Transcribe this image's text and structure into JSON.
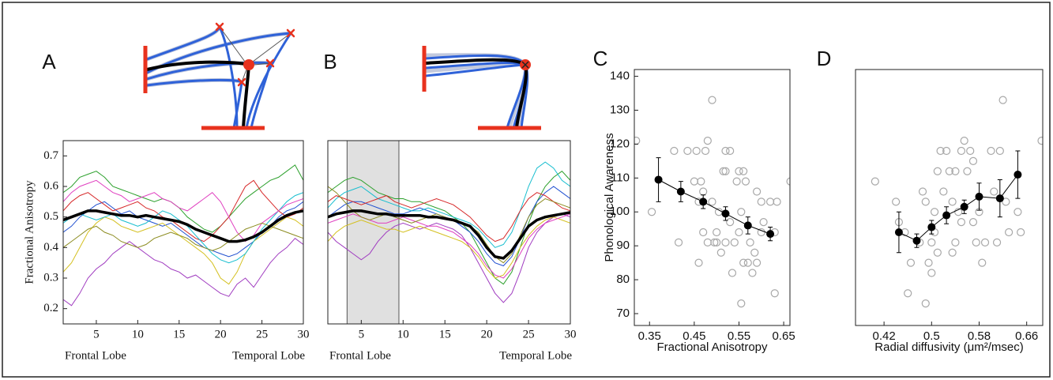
{
  "chart_data": [
    {
      "type": "line",
      "panel_label": "A",
      "ylabel": "Fractional Anisotropy",
      "x_annotations": [
        "Frontal Lobe",
        "Temporal Lobe"
      ],
      "x": [
        1,
        2,
        3,
        4,
        5,
        6,
        7,
        8,
        9,
        10,
        11,
        12,
        13,
        14,
        15,
        16,
        17,
        18,
        19,
        20,
        21,
        22,
        23,
        24,
        25,
        26,
        27,
        28,
        29,
        30
      ],
      "xlim": [
        1,
        30
      ],
      "xticks": [
        5,
        10,
        15,
        20,
        25,
        30
      ],
      "ylim": [
        0.15,
        0.75
      ],
      "yticks": [
        0.2,
        0.3,
        0.4,
        0.5,
        0.6,
        0.7
      ],
      "series": [
        {
          "color": "#a03cc0",
          "values": [
            0.23,
            0.21,
            0.25,
            0.3,
            0.33,
            0.35,
            0.38,
            0.4,
            0.42,
            0.4,
            0.38,
            0.36,
            0.35,
            0.33,
            0.32,
            0.3,
            0.31,
            0.29,
            0.27,
            0.25,
            0.24,
            0.28,
            0.3,
            0.27,
            0.31,
            0.35,
            0.38,
            0.4,
            0.43,
            0.41
          ]
        },
        {
          "color": "#2ca02c",
          "values": [
            0.58,
            0.6,
            0.63,
            0.64,
            0.65,
            0.63,
            0.6,
            0.59,
            0.58,
            0.57,
            0.56,
            0.55,
            0.56,
            0.55,
            0.53,
            0.5,
            0.48,
            0.46,
            0.45,
            0.47,
            0.5,
            0.53,
            0.56,
            0.58,
            0.6,
            0.62,
            0.63,
            0.65,
            0.67,
            0.62
          ]
        },
        {
          "color": "#1f4fd0",
          "values": [
            0.45,
            0.47,
            0.5,
            0.52,
            0.54,
            0.55,
            0.53,
            0.51,
            0.52,
            0.5,
            0.49,
            0.48,
            0.47,
            0.48,
            0.46,
            0.44,
            0.42,
            0.4,
            0.39,
            0.38,
            0.37,
            0.38,
            0.4,
            0.42,
            0.45,
            0.47,
            0.5,
            0.52,
            0.53,
            0.55
          ]
        },
        {
          "color": "#d4c020",
          "values": [
            0.32,
            0.35,
            0.4,
            0.45,
            0.48,
            0.5,
            0.49,
            0.47,
            0.46,
            0.45,
            0.46,
            0.47,
            0.48,
            0.46,
            0.44,
            0.42,
            0.4,
            0.38,
            0.35,
            0.3,
            0.28,
            0.32,
            0.38,
            0.42,
            0.44,
            0.46,
            0.48,
            0.5,
            0.49,
            0.47
          ]
        },
        {
          "color": "#d62728",
          "values": [
            0.52,
            0.55,
            0.57,
            0.58,
            0.56,
            0.54,
            0.52,
            0.53,
            0.54,
            0.55,
            0.53,
            0.52,
            0.5,
            0.49,
            0.47,
            0.45,
            0.43,
            0.42,
            0.44,
            0.47,
            0.5,
            0.55,
            0.6,
            0.62,
            0.58,
            0.55,
            0.52,
            0.5,
            0.51,
            0.53
          ]
        },
        {
          "color": "#17becf",
          "values": [
            0.48,
            0.5,
            0.51,
            0.5,
            0.49,
            0.5,
            0.51,
            0.49,
            0.48,
            0.47,
            0.48,
            0.5,
            0.52,
            0.51,
            0.49,
            0.47,
            0.44,
            0.41,
            0.38,
            0.36,
            0.35,
            0.36,
            0.38,
            0.42,
            0.46,
            0.49,
            0.52,
            0.55,
            0.57,
            0.58
          ]
        },
        {
          "color": "#e040c0",
          "values": [
            0.55,
            0.58,
            0.6,
            0.61,
            0.62,
            0.6,
            0.58,
            0.57,
            0.55,
            0.56,
            0.57,
            0.58,
            0.56,
            0.55,
            0.53,
            0.52,
            0.54,
            0.56,
            0.58,
            0.55,
            0.5,
            0.45,
            0.42,
            0.44,
            0.48,
            0.5,
            0.52,
            0.54,
            0.55,
            0.56
          ]
        },
        {
          "color": "#8c8c20",
          "values": [
            0.4,
            0.42,
            0.44,
            0.46,
            0.47,
            0.45,
            0.44,
            0.42,
            0.41,
            0.4,
            0.41,
            0.43,
            0.44,
            0.45,
            0.44,
            0.43,
            0.41,
            0.4,
            0.39,
            0.4,
            0.42,
            0.44,
            0.46,
            0.47,
            0.48,
            0.47,
            0.46,
            0.45,
            0.44,
            0.43
          ]
        },
        {
          "color": "#000000",
          "values": [
            0.49,
            0.5,
            0.51,
            0.52,
            0.52,
            0.515,
            0.51,
            0.505,
            0.505,
            0.5,
            0.505,
            0.5,
            0.495,
            0.49,
            0.485,
            0.475,
            0.46,
            0.45,
            0.44,
            0.43,
            0.42,
            0.42,
            0.425,
            0.435,
            0.45,
            0.47,
            0.49,
            0.505,
            0.515,
            0.52
          ]
        }
      ]
    },
    {
      "type": "line",
      "panel_label": "B",
      "x_annotations": [
        "Frontal Lobe",
        "Temporal Lobe"
      ],
      "highlight": [
        3.3,
        9.5
      ],
      "x": [
        1,
        2,
        3,
        4,
        5,
        6,
        7,
        8,
        9,
        10,
        11,
        12,
        13,
        14,
        15,
        16,
        17,
        18,
        19,
        20,
        21,
        22,
        23,
        24,
        25,
        26,
        27,
        28,
        29,
        30
      ],
      "xlim": [
        1,
        30
      ],
      "xticks": [
        5,
        10,
        15,
        20,
        25,
        30
      ],
      "ylim": [
        0.15,
        0.75
      ],
      "series": [
        {
          "color": "#2ca02c",
          "values": [
            0.58,
            0.6,
            0.62,
            0.63,
            0.62,
            0.6,
            0.58,
            0.57,
            0.56,
            0.56,
            0.55,
            0.55,
            0.54,
            0.53,
            0.52,
            0.5,
            0.48,
            0.45,
            0.4,
            0.35,
            0.3,
            0.28,
            0.32,
            0.4,
            0.48,
            0.55,
            0.6,
            0.63,
            0.65,
            0.62
          ]
        },
        {
          "color": "#a03cc0",
          "values": [
            0.45,
            0.42,
            0.4,
            0.38,
            0.36,
            0.38,
            0.42,
            0.45,
            0.47,
            0.48,
            0.47,
            0.46,
            0.47,
            0.48,
            0.47,
            0.46,
            0.44,
            0.4,
            0.35,
            0.3,
            0.25,
            0.22,
            0.25,
            0.32,
            0.4,
            0.45,
            0.48,
            0.5,
            0.51,
            0.5
          ]
        },
        {
          "color": "#1f4fd0",
          "values": [
            0.5,
            0.52,
            0.54,
            0.55,
            0.55,
            0.54,
            0.53,
            0.52,
            0.51,
            0.51,
            0.52,
            0.53,
            0.52,
            0.51,
            0.5,
            0.49,
            0.47,
            0.45,
            0.42,
            0.38,
            0.35,
            0.34,
            0.37,
            0.43,
            0.5,
            0.55,
            0.58,
            0.6,
            0.58,
            0.56
          ]
        },
        {
          "color": "#17becf",
          "values": [
            0.53,
            0.56,
            0.58,
            0.59,
            0.6,
            0.58,
            0.56,
            0.55,
            0.54,
            0.53,
            0.52,
            0.52,
            0.53,
            0.52,
            0.51,
            0.5,
            0.49,
            0.48,
            0.46,
            0.43,
            0.4,
            0.41,
            0.45,
            0.52,
            0.6,
            0.66,
            0.68,
            0.66,
            0.62,
            0.6
          ]
        },
        {
          "color": "#d4c020",
          "values": [
            0.42,
            0.45,
            0.47,
            0.48,
            0.49,
            0.48,
            0.47,
            0.46,
            0.46,
            0.45,
            0.46,
            0.47,
            0.46,
            0.45,
            0.44,
            0.43,
            0.42,
            0.4,
            0.37,
            0.33,
            0.3,
            0.31,
            0.35,
            0.4,
            0.44,
            0.47,
            0.49,
            0.5,
            0.49,
            0.48
          ]
        },
        {
          "color": "#d62728",
          "values": [
            0.55,
            0.57,
            0.56,
            0.55,
            0.54,
            0.55,
            0.56,
            0.57,
            0.55,
            0.54,
            0.53,
            0.54,
            0.55,
            0.56,
            0.55,
            0.54,
            0.52,
            0.5,
            0.47,
            0.44,
            0.42,
            0.43,
            0.47,
            0.52,
            0.56,
            0.58,
            0.57,
            0.55,
            0.53,
            0.52
          ]
        },
        {
          "color": "#e040c0",
          "values": [
            0.48,
            0.49,
            0.5,
            0.51,
            0.5,
            0.49,
            0.48,
            0.48,
            0.49,
            0.5,
            0.49,
            0.48,
            0.47,
            0.47,
            0.46,
            0.45,
            0.43,
            0.41,
            0.38,
            0.34,
            0.31,
            0.3,
            0.33,
            0.38,
            0.43,
            0.46,
            0.48,
            0.49,
            0.5,
            0.51
          ]
        },
        {
          "color": "#8c8c20",
          "values": [
            0.6,
            0.58,
            0.55,
            0.52,
            0.5,
            0.49,
            0.5,
            0.51,
            0.5,
            0.49,
            0.48,
            0.49,
            0.5,
            0.51,
            0.5,
            0.49,
            0.48,
            0.47,
            0.45,
            0.41,
            0.37,
            0.35,
            0.38,
            0.44,
            0.5,
            0.54,
            0.56,
            0.55,
            0.54,
            0.53
          ]
        },
        {
          "color": "#000000",
          "values": [
            0.5,
            0.51,
            0.515,
            0.52,
            0.52,
            0.515,
            0.51,
            0.51,
            0.505,
            0.505,
            0.505,
            0.505,
            0.5,
            0.5,
            0.495,
            0.49,
            0.48,
            0.47,
            0.44,
            0.4,
            0.37,
            0.365,
            0.39,
            0.43,
            0.47,
            0.49,
            0.5,
            0.505,
            0.51,
            0.515
          ]
        }
      ]
    },
    {
      "type": "scatter",
      "panel_label": "C",
      "xlabel": "Fractional Anisotropy",
      "ylabel": "Phonological Awareness",
      "xlim": [
        0.316,
        0.664
      ],
      "xticks": [
        0.35,
        0.45,
        0.55,
        0.65
      ],
      "ylim": [
        66.5,
        142
      ],
      "yticks": [
        70,
        80,
        90,
        100,
        110,
        120,
        130,
        140
      ],
      "series": [
        {
          "color": "#a8a8a8",
          "x": [
            0.32,
            0.355,
            0.405,
            0.415,
            0.435,
            0.45,
            0.455,
            0.46,
            0.46,
            0.465,
            0.47,
            0.47,
            0.475,
            0.48,
            0.48,
            0.49,
            0.49,
            0.495,
            0.5,
            0.5,
            0.505,
            0.51,
            0.515,
            0.52,
            0.52,
            0.52,
            0.53,
            0.53,
            0.535,
            0.54,
            0.545,
            0.55,
            0.55,
            0.555,
            0.56,
            0.56,
            0.565,
            0.57,
            0.575,
            0.58,
            0.585,
            0.59,
            0.6,
            0.6,
            0.605,
            0.555,
            0.63,
            0.63,
            0.635,
            0.665,
            0.62,
            0.59
          ],
          "values": [
            121,
            100,
            118,
            91,
            118,
            109,
            118,
            103,
            85,
            109,
            106,
            94,
            118,
            121,
            91,
            133,
            103,
            91,
            94,
            91,
            100,
            88,
            112,
            118,
            112,
            91,
            97,
            118,
            82,
            91,
            109,
            112,
            94,
            100,
            112,
            85,
            109,
            85,
            91,
            82,
            88,
            85,
            103,
            94,
            97,
            73,
            94,
            76,
            103,
            109,
            103,
            106
          ]
        },
        {
          "color": "#000000",
          "x": [
            0.37,
            0.42,
            0.47,
            0.52,
            0.57,
            0.62
          ],
          "values": [
            109.5,
            106,
            103,
            99.5,
            96,
            93.5
          ],
          "errors": [
            6.5,
            3,
            2,
            2,
            2.5,
            2
          ]
        }
      ]
    },
    {
      "type": "scatter",
      "panel_label": "D",
      "xlabel": "Radial diffusivity (μm²/msec)",
      "xlim": [
        0.372,
        0.687
      ],
      "xticks": [
        0.42,
        0.5,
        0.58,
        0.66
      ],
      "ylim": [
        66.5,
        142
      ],
      "series": [
        {
          "color": "#a8a8a8",
          "x": [
            0.405,
            0.44,
            0.445,
            0.455,
            0.46,
            0.465,
            0.48,
            0.485,
            0.49,
            0.49,
            0.495,
            0.5,
            0.5,
            0.505,
            0.505,
            0.51,
            0.51,
            0.515,
            0.52,
            0.525,
            0.53,
            0.535,
            0.535,
            0.54,
            0.54,
            0.545,
            0.55,
            0.555,
            0.56,
            0.565,
            0.57,
            0.575,
            0.58,
            0.585,
            0.59,
            0.6,
            0.605,
            0.61,
            0.615,
            0.62,
            0.625,
            0.63,
            0.645,
            0.65,
            0.685,
            0.55,
            0.57
          ],
          "values": [
            109,
            103,
            97,
            94,
            76,
            85,
            91,
            106,
            73,
            103,
            85,
            82,
            91,
            94,
            100,
            88,
            112,
            118,
            106,
            118,
            112,
            103,
            88,
            91,
            112,
            100,
            118,
            121,
            112,
            118,
            97,
            91,
            100,
            85,
            91,
            118,
            106,
            91,
            118,
            133,
            103,
            94,
            100,
            94,
            121,
            97,
            115
          ]
        },
        {
          "color": "#000000",
          "x": [
            0.445,
            0.475,
            0.5,
            0.525,
            0.555,
            0.58,
            0.615,
            0.645
          ],
          "values": [
            94,
            91.5,
            95.5,
            99,
            101.5,
            104.5,
            104,
            111
          ],
          "errors": [
            6,
            2,
            2,
            2.5,
            2,
            4,
            5.5,
            7
          ]
        }
      ]
    }
  ]
}
